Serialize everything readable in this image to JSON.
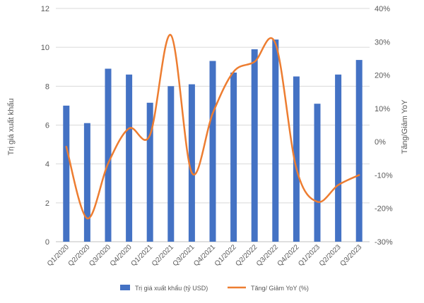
{
  "chart_data": {
    "type": "bar",
    "categories": [
      "Q1/2020",
      "Q2/2020",
      "Q3/2020",
      "Q4/2020",
      "Q1/2021",
      "Q2/2021",
      "Q3/2021",
      "Q4/2021",
      "Q1/2022",
      "Q2/2022",
      "Q3/2022",
      "Q4/2022",
      "Q1/2023",
      "Q2/2023",
      "Q3/2023"
    ],
    "series": [
      {
        "name": "Trị giá xuất khẩu (tỷ USD)",
        "type": "bar",
        "axis": "left",
        "color": "#4472C4",
        "values": [
          7.0,
          6.1,
          8.9,
          8.6,
          7.15,
          8.0,
          8.1,
          9.3,
          8.7,
          9.9,
          10.4,
          8.5,
          7.1,
          8.6,
          9.35
        ]
      },
      {
        "name": "Tăng/ Giảm YoY (%)",
        "type": "line",
        "axis": "right",
        "smoothed": true,
        "color": "#ED7D31",
        "values": [
          -1.5,
          -23,
          -6.5,
          4,
          2,
          32,
          -9.3,
          8.5,
          21,
          24,
          29.5,
          -8,
          -18,
          -13,
          -10
        ]
      }
    ],
    "xlabel": "",
    "ylabel": "Trị giá xuất khẩu",
    "y2label": "Tăng/Giảm YoY",
    "ylim": [
      0,
      12
    ],
    "y2lim": [
      -30,
      40
    ],
    "yticks": [
      "0",
      "2",
      "4",
      "6",
      "8",
      "10",
      "12"
    ],
    "y2ticks": [
      "-30%",
      "-20%",
      "-10%",
      "0%",
      "10%",
      "20%",
      "30%",
      "40%"
    ],
    "grid": true,
    "grid_color": "#D9D9D9",
    "legend": "bottom"
  }
}
